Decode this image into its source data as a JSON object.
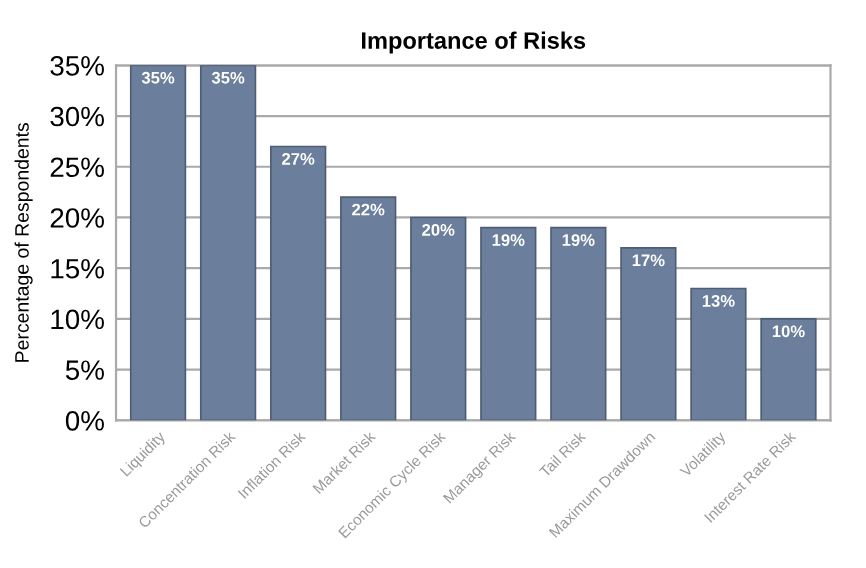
{
  "chart_data": {
    "type": "bar",
    "title": "Importance of Risks",
    "ylabel": "Percentage of Respondents",
    "categories": [
      "Liquidity",
      "Concentration Risk",
      "Inflation Risk",
      "Market Risk",
      "Economic Cycle Risk",
      "Manager Risk",
      "Tail Risk",
      "Maximum Drawdown",
      "Volatility",
      "Interest Rate Risk"
    ],
    "values": [
      35,
      35,
      27,
      22,
      20,
      19,
      19,
      17,
      13,
      10
    ],
    "value_labels": [
      "35%",
      "35%",
      "27%",
      "22%",
      "20%",
      "19%",
      "19%",
      "17%",
      "13%",
      "10%"
    ],
    "color": "#6b7f9d",
    "ylim": [
      0,
      35
    ],
    "yticks": [
      {
        "value": 0,
        "label": "0%"
      },
      {
        "value": 5,
        "label": "5%"
      },
      {
        "value": 10,
        "label": "10%"
      },
      {
        "value": 15,
        "label": "15%"
      },
      {
        "value": 20,
        "label": "20%"
      },
      {
        "value": 25,
        "label": "25%"
      },
      {
        "value": 30,
        "label": "30%"
      },
      {
        "value": 35,
        "label": "35%"
      }
    ],
    "grid": "y"
  }
}
